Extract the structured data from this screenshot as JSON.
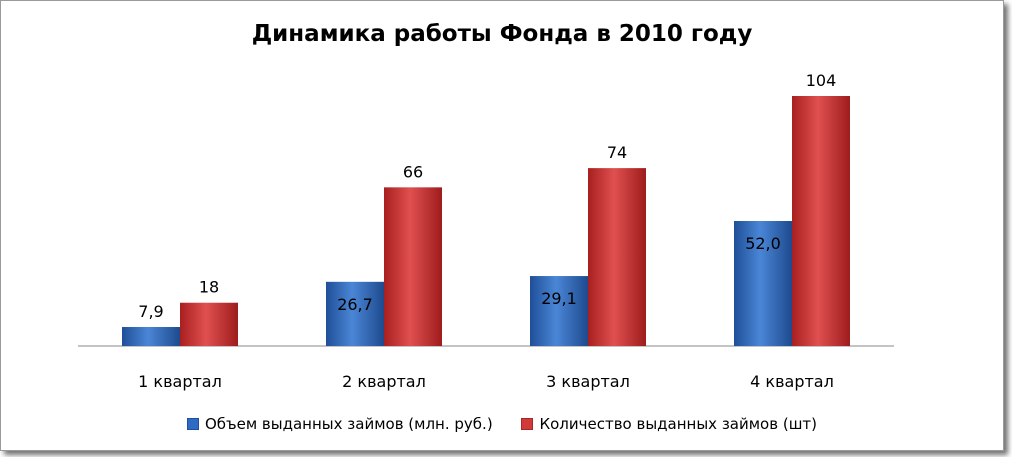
{
  "chart_data": {
    "type": "bar",
    "title": "Динамика работы Фонда в 2010 году",
    "categories": [
      "1 квартал",
      "2 квартал",
      "3 квартал",
      "4 квартал"
    ],
    "series": [
      {
        "name": "Объем выданных займов (млн. руб.)",
        "values": [
          7.9,
          26.7,
          29.1,
          52.0
        ],
        "labels": [
          "7,9",
          "26,7",
          "29,1",
          "52,0"
        ],
        "color": "#2e6bc4"
      },
      {
        "name": "Количество выданных займов (шт)",
        "values": [
          18,
          66,
          74,
          104
        ],
        "labels": [
          "18",
          "66",
          "74",
          "104"
        ],
        "color": "#d23a3a"
      }
    ],
    "ylim": [
      0,
      120
    ],
    "grid": false,
    "legend_position": "bottom"
  }
}
